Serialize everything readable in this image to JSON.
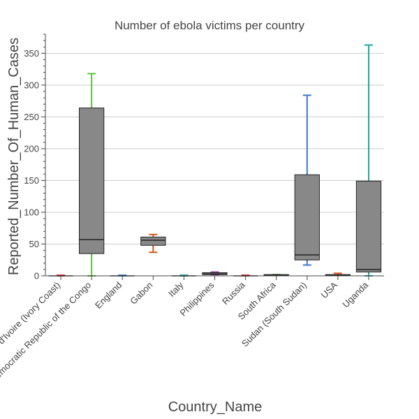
{
  "chart_data": {
    "type": "box",
    "title": "Number of ebola victims per country",
    "xlabel": "Country_Name",
    "ylabel": "Reported_Number_Of_Human_Cases",
    "ylim": [
      0,
      380
    ],
    "yticks": [
      0,
      50,
      100,
      150,
      200,
      250,
      300,
      350
    ],
    "grid": true,
    "categories": [
      "Côte d'Ivoire (Ivory Coast)",
      "Democratic Republic of the Congo",
      "England",
      "Gabon",
      "Italy",
      "Philippines",
      "Russia",
      "South Africa",
      "Sudan (South Sudan)",
      "USA",
      "Uganda"
    ],
    "boxes": [
      {
        "q1": 0,
        "median": 0,
        "q3": 0,
        "whisker_low": 0,
        "whisker_high": 1,
        "color": "#d62728"
      },
      {
        "q1": 35,
        "median": 57,
        "q3": 264,
        "whisker_low": 0,
        "whisker_high": 318,
        "color": "#5ec13b"
      },
      {
        "q1": 0,
        "median": 0,
        "q3": 0,
        "whisker_low": 0,
        "whisker_high": 1,
        "color": "#3b78c8"
      },
      {
        "q1": 48,
        "median": 56,
        "q3": 61,
        "whisker_low": 37,
        "whisker_high": 65,
        "color": "#d9541e"
      },
      {
        "q1": 0,
        "median": 0,
        "q3": 0,
        "whisker_low": 0,
        "whisker_high": 1,
        "color": "#20a39e"
      },
      {
        "q1": 2,
        "median": 3,
        "q3": 5,
        "whisker_low": 2,
        "whisker_high": 6,
        "color": "#9b3cb7"
      },
      {
        "q1": 0,
        "median": 0,
        "q3": 0,
        "whisker_low": 0,
        "whisker_high": 1,
        "color": "#d62728"
      },
      {
        "q1": 1,
        "median": 1,
        "q3": 2,
        "whisker_low": 1,
        "whisker_high": 2,
        "color": "#5ec13b"
      },
      {
        "q1": 25,
        "median": 33,
        "q3": 159,
        "whisker_low": 17,
        "whisker_high": 284,
        "color": "#3b78c8"
      },
      {
        "q1": 1,
        "median": 1,
        "q3": 2,
        "whisker_low": 1,
        "whisker_high": 4,
        "color": "#d9541e"
      },
      {
        "q1": 6,
        "median": 10,
        "q3": 149,
        "whisker_low": 0,
        "whisker_high": 363,
        "color": "#20a39e"
      }
    ]
  }
}
